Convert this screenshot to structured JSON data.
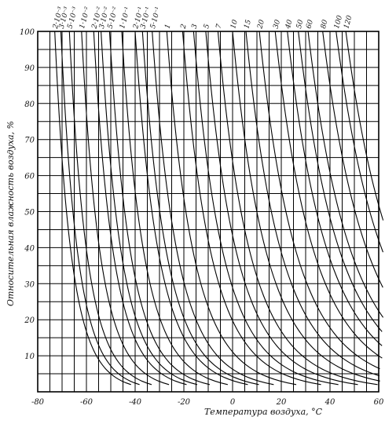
{
  "chart_data": {
    "type": "line",
    "title": "",
    "xlabel": "Температура воздуха, °C",
    "ylabel": "Относительная влажность воздуха, %",
    "xlim": [
      -80,
      60
    ],
    "ylim": [
      0,
      100
    ],
    "x_ticks": [
      "-80",
      "-60",
      "-40",
      "-20",
      "0",
      "20",
      "40",
      "60"
    ],
    "y_ticks": [
      "10",
      "20",
      "30",
      "40",
      "50",
      "60",
      "70",
      "80",
      "90",
      "100"
    ],
    "grid": true,
    "curve_labels": [
      "2·10⁻³",
      "3·10⁻³",
      "5·10⁻³",
      "1·10⁻²",
      "2·10⁻²",
      "3·10⁻²",
      "5·10⁻²",
      "1·10⁻¹",
      "2·10⁻¹",
      "3·10⁻¹",
      "5·10⁻¹",
      "1",
      "2",
      "3",
      "5",
      "7",
      "10",
      "15",
      "20",
      "30",
      "40",
      "50",
      "60",
      "80",
      "100",
      "120"
    ],
    "series": [
      {
        "label": "2·10⁻³",
        "x_at_100": -73.0
      },
      {
        "label": "3·10⁻³",
        "x_at_100": -70.5
      },
      {
        "label": "5·10⁻³",
        "x_at_100": -67.0
      },
      {
        "label": "1·10⁻²",
        "x_at_100": -62.0
      },
      {
        "label": "2·10⁻²",
        "x_at_100": -57.0
      },
      {
        "label": "3·10⁻²",
        "x_at_100": -54.0
      },
      {
        "label": "5·10⁻²",
        "x_at_100": -50.5
      },
      {
        "label": "1·10⁻¹",
        "x_at_100": -45.5
      },
      {
        "label": "2·10⁻¹",
        "x_at_100": -40.0
      },
      {
        "label": "3·10⁻¹",
        "x_at_100": -37.0
      },
      {
        "label": "5·10⁻¹",
        "x_at_100": -33.0
      },
      {
        "label": "1",
        "x_at_100": -27.0
      },
      {
        "label": "2",
        "x_at_100": -20.5
      },
      {
        "label": "3",
        "x_at_100": -16.0
      },
      {
        "label": "5",
        "x_at_100": -11.0
      },
      {
        "label": "7",
        "x_at_100": -6.0
      },
      {
        "label": "10",
        "x_at_100": 0.0
      },
      {
        "label": "15",
        "x_at_100": 5.5
      },
      {
        "label": "20",
        "x_at_100": 11.0
      },
      {
        "label": "30",
        "x_at_100": 17.5
      },
      {
        "label": "40",
        "x_at_100": 22.5
      },
      {
        "label": "50",
        "x_at_100": 27.0
      },
      {
        "label": "60",
        "x_at_100": 31.0
      },
      {
        "label": "80",
        "x_at_100": 37.0
      },
      {
        "label": "100",
        "x_at_100": 42.5
      },
      {
        "label": "120",
        "x_at_100": 46.5
      }
    ]
  }
}
